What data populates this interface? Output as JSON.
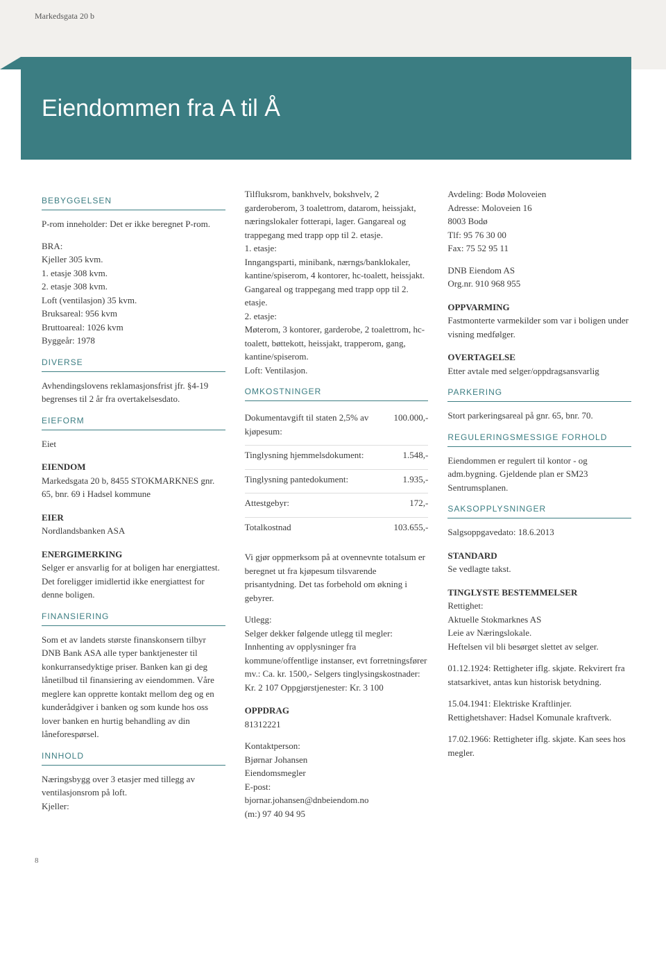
{
  "header_address": "Markedsgata 20 b",
  "banner_title": "Eiendommen fra A til Å",
  "page_number": "8",
  "col1": {
    "bebyggelsen": {
      "head": "BEBYGGELSEN",
      "p1": "P-rom inneholder: Det er ikke beregnet P-rom.",
      "bra_label": "BRA:",
      "bra_l1": "Kjeller 305 kvm.",
      "bra_l2": "1. etasje 308 kvm.",
      "bra_l3": "2. etasje 308 kvm.",
      "bra_l4": "Loft (ventilasjon) 35 kvm.",
      "bra_l5": "Bruksareal: 956 kvm",
      "bra_l6": "Bruttoareal: 1026 kvm",
      "bra_l7": "Byggeår: 1978"
    },
    "diverse": {
      "head": "DIVERSE",
      "p1": "Avhendingslovens reklamasjonsfrist jfr. §4-19 begrenses til 2 år fra overtakelsesdato."
    },
    "eieform": {
      "head": "EIEFORM",
      "p1": "Eiet"
    },
    "eiendom": {
      "head": "EIENDOM",
      "p1": "Markedsgata 20 b, 8455 STOKMARKNES gnr. 65, bnr. 69 i Hadsel kommune"
    },
    "eier": {
      "head": "EIER",
      "p1": "Nordlandsbanken ASA"
    },
    "energi": {
      "head": "ENERGIMERKING",
      "p1": "Selger er ansvarlig for at boligen har energiattest. Det foreligger imidlertid ikke energiattest for denne boligen."
    },
    "finans": {
      "head": "FINANSIERING",
      "p1": "Som et av landets største finanskonsern tilbyr DNB Bank ASA alle typer banktjenester til konkurransedyktige priser. Banken kan gi deg lånetilbud til finansiering av eiendommen. Våre meglere kan opprette kontakt mellom deg og en kunderådgiver i banken og som kunde hos oss lover banken en hurtig behandling av din låneforespørsel."
    },
    "innhold": {
      "head": "INNHOLD",
      "p1": "Næringsbygg over 3 etasjer med tillegg av ventilasjonsrom på loft.",
      "p2": "Kjeller:"
    }
  },
  "col2": {
    "innhold_cont": {
      "p1": "Tilfluksrom, bankhvelv, bokshvelv, 2 garderoberom, 3 toalettrom, datarom, heissjakt, næringslokaler fotterapi, lager. Gangareal og trappegang med trapp opp til 2. etasje.",
      "e1_label": "1. etasje:",
      "e1": "Inngangsparti, minibank, nærngs/banklokaler, kantine/spiserom, 4 kontorer, hc-toalett, heissjakt. Gangareal og trappegang med trapp opp til 2. etasje.",
      "e2_label": "2. etasje:",
      "e2": "Møterom, 3 kontorer, garderobe, 2 toalettrom, hc-toalett, bøttekott, heissjakt, trapperom, gang, kantine/spiserom.",
      "loft": "Loft: Ventilasjon."
    },
    "omkost": {
      "head": "OMKOSTNINGER",
      "rows": [
        {
          "label": "Dokumentavgift til staten\n2,5% av kjøpesum:",
          "val": "100.000,-"
        },
        {
          "label": "Tinglysning hjemmelsdokument:",
          "val": "1.548,-"
        },
        {
          "label": "Tinglysning pantedokument:",
          "val": "1.935,-"
        },
        {
          "label": "Attestgebyr:",
          "val": "172,-"
        },
        {
          "label": "Totalkostnad",
          "val": "103.655,-"
        }
      ],
      "p1": "Vi gjør oppmerksom på at ovennevnte totalsum er beregnet ut fra kjøpesum tilsvarende prisantydning. Det tas forbehold om økning i gebyrer.",
      "utlegg_label": "Utlegg:",
      "utlegg": "Selger dekker følgende utlegg til megler: Innhenting av opplysninger fra kommune/offentlige instanser, evt forretningsfører mv.: Ca. kr. 1500,- Selgers tinglysingskostnader: Kr. 2 107 Oppgjørstjenester: Kr. 3 100"
    },
    "oppdrag": {
      "head": "OPPDRAG",
      "num": "81312221",
      "contact_label": "Kontaktperson:",
      "name": "Bjørnar Johansen",
      "role": "Eiendomsmegler",
      "epost_label": "E-post:",
      "epost": "bjornar.johansen@dnbeiendom.no",
      "phone": "(m:) 97 40 94 95"
    }
  },
  "col3": {
    "avdeling": {
      "l1": "Avdeling: Bodø Moloveien",
      "l2": "Adresse: Moloveien 16",
      "l3": "8003 Bodø",
      "l4": "Tlf: 95 76 30 00",
      "l5": "Fax: 75 52 95 11",
      "company": "DNB Eiendom AS",
      "orgnr": "Org.nr. 910 968 955"
    },
    "oppvarming": {
      "head": "OPPVARMING",
      "p1": "Fastmonterte varmekilder som var i boligen under visning medfølger."
    },
    "overtagelse": {
      "head": "OVERTAGELSE",
      "p1": "Etter avtale med selger/oppdragsansvarlig"
    },
    "parkering": {
      "head": "PARKERING",
      "p1": "Stort parkeringsareal på gnr. 65, bnr. 70."
    },
    "regulering": {
      "head": "REGULERINGSMESSIGE FORHOLD",
      "p1": "Eiendommen er regulert til kontor - og adm.bygning. Gjeldende plan er SM23 Sentrumsplanen."
    },
    "saks": {
      "head": "SAKSOPPLYSNINGER",
      "p1": "Salgsoppgavedato: 18.6.2013"
    },
    "standard": {
      "head": "STANDARD",
      "p1": "Se vedlagte takst."
    },
    "tinglyst": {
      "head": "TINGLYSTE BESTEMMELSER",
      "l1": "Rettighet:",
      "l2": "Aktuelle Stokmarknes AS",
      "l3": "Leie av Næringslokale.",
      "l4": "Heftelsen vil bli besørget slettet av selger.",
      "p2": "01.12.1924: Rettigheter iflg. skjøte. Rekvirert fra statsarkivet, antas kun historisk betydning.",
      "p3": "15.04.1941: Elektriske Kraftlinjer. Rettighetshaver: Hadsel Komunale kraftverk.",
      "p4": "17.02.1966: Rettigheter iflg. skjøte. Kan sees hos megler."
    }
  }
}
